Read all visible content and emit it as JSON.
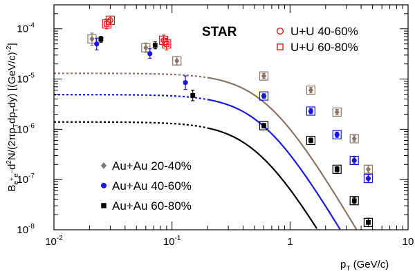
{
  "chart_data": {
    "type": "scatter",
    "title": "STAR",
    "xlabel": {
      "base": "p",
      "sub": "T",
      "rest": " (GeV/c)"
    },
    "ylabel": {
      "parts": [
        {
          "t": "B",
          "s": "n"
        },
        {
          "t": "e",
          "s": "sub"
        },
        {
          "t": "+",
          "s": "sub-sup"
        },
        {
          "t": "e",
          "s": "sub"
        },
        {
          "t": "−",
          "s": "sub-sup"
        },
        {
          "t": "d",
          "s": "n"
        },
        {
          "t": "2",
          "s": "sup"
        },
        {
          "t": "N/(2πp",
          "s": "n"
        },
        {
          "t": "T",
          "s": "sub"
        },
        {
          "t": "dp",
          "s": "n"
        },
        {
          "t": "T",
          "s": "sub"
        },
        {
          "t": "dy) [(GeV/c)",
          "s": "n"
        },
        {
          "t": "-2",
          "s": "sup"
        },
        {
          "t": "]",
          "s": "n"
        }
      ]
    },
    "x_scale": "log",
    "y_scale": "log",
    "xlim": [
      0.01,
      10
    ],
    "ylim": [
      1e-08,
      0.0003
    ],
    "x_ticks": [
      {
        "value": 0.01,
        "mant": "10",
        "exp": "-2"
      },
      {
        "value": 0.1,
        "mant": "10",
        "exp": "-1"
      },
      {
        "value": 1,
        "mant": "1",
        "exp": ""
      },
      {
        "value": 10,
        "mant": "10",
        "exp": ""
      }
    ],
    "y_ticks": [
      {
        "value": 1e-08,
        "mant": "10",
        "exp": "-8"
      },
      {
        "value": 1e-07,
        "mant": "10",
        "exp": "-7"
      },
      {
        "value": 1e-06,
        "mant": "10",
        "exp": "-6"
      },
      {
        "value": 1e-05,
        "mant": "10",
        "exp": "-5"
      },
      {
        "value": 0.0001,
        "mant": "10",
        "exp": "-4"
      }
    ],
    "grid": false,
    "legend_au": "bottom-left",
    "legend_u": "top-right",
    "series": [
      {
        "name": "Au+Au 20-40%",
        "color": "#8b7466",
        "marker": "diamond",
        "x": [
          0.021,
          0.06,
          0.11,
          0.6,
          1.5,
          2.5,
          3.5,
          4.6
        ],
        "y": [
          6.3e-05,
          4.2e-05,
          2.3e-05,
          1.15e-05,
          6e-06,
          2.2e-06,
          6.5e-07,
          1.6e-07
        ],
        "yerr_up": [
          1.9e-05,
          1e-05,
          5e-06,
          1.5e-06,
          8e-07,
          3e-07,
          1e-07,
          3e-08
        ],
        "yerr_lo": [
          1.6e-05,
          8e-06,
          4e-06,
          1.3e-06,
          7e-07,
          2.5e-07,
          8e-08,
          2.5e-08
        ],
        "sys_box": [
          true,
          true,
          true,
          true,
          true,
          true,
          true,
          true
        ]
      },
      {
        "name": "Au+Au 40-60%",
        "color": "#1717e0",
        "marker": "circle",
        "x": [
          0.023,
          0.065,
          0.13,
          0.6,
          1.5,
          2.5,
          3.5,
          4.6
        ],
        "y": [
          5e-05,
          3.2e-05,
          8.5e-06,
          4.6e-06,
          2.3e-06,
          7.8e-07,
          2.4e-07,
          1.05e-07
        ],
        "yerr_up": [
          1.5e-05,
          8e-06,
          3e-06,
          5e-07,
          3e-07,
          1e-07,
          4e-08,
          2e-08
        ],
        "yerr_lo": [
          1.2e-05,
          6e-06,
          2.3e-06,
          4.5e-07,
          2.6e-07,
          9e-08,
          3.5e-08,
          1.7e-08
        ],
        "sys_box": [
          false,
          false,
          false,
          true,
          true,
          true,
          true,
          true
        ]
      },
      {
        "name": "Au+Au 60-80%",
        "color": "#000000",
        "marker": "square",
        "x": [
          0.025,
          0.072,
          0.15,
          0.6,
          1.5,
          2.5,
          3.5,
          4.6
        ],
        "y": [
          6.2e-05,
          4.7e-05,
          4.7e-06,
          1.18e-06,
          6e-07,
          1.6e-07,
          3.8e-08,
          1.4e-08
        ],
        "yerr_up": [
          9e-06,
          8e-06,
          1.3e-06,
          1.3e-07,
          7e-08,
          2e-08,
          6e-09,
          3e-09
        ],
        "yerr_lo": [
          8e-06,
          7e-06,
          1e-06,
          1.2e-07,
          6e-08,
          1.8e-08,
          5e-09,
          2.5e-09
        ],
        "sys_box": [
          false,
          false,
          false,
          true,
          true,
          true,
          true,
          true
        ]
      },
      {
        "name": "U+U 40-60%",
        "color": "#e02020",
        "marker": "open-circle",
        "x": [
          0.03,
          0.085
        ],
        "y": [
          0.000148,
          5.9e-05
        ],
        "yerr_up": [
          3e-05,
          1.6e-05
        ],
        "yerr_lo": [
          2.5e-05,
          1.3e-05
        ],
        "sys_box": [
          true,
          true
        ]
      },
      {
        "name": "U+U 60-80%",
        "color": "#e02020",
        "marker": "open-square",
        "x": [
          0.028,
          0.09
        ],
        "y": [
          0.000125,
          5e-05
        ],
        "yerr_up": [
          3e-05,
          1.5e-05
        ],
        "yerr_lo": [
          2.5e-05,
          1.2e-05
        ],
        "sys_box": [
          true,
          true
        ]
      }
    ],
    "fit_curves": [
      {
        "color": "#8b7466",
        "y0": 1.3e-05,
        "k": 0.62,
        "n": 4
      },
      {
        "color": "#1717e0",
        "y0": 4.9e-06,
        "k": 0.58,
        "n": 4
      },
      {
        "color": "#000000",
        "y0": 1.4e-06,
        "k": 0.52,
        "n": 4
      }
    ]
  }
}
